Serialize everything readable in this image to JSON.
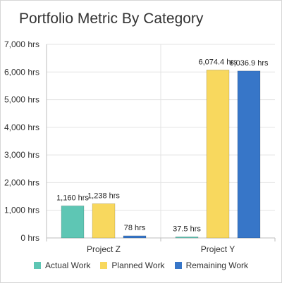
{
  "chart_data": {
    "type": "bar",
    "title": "Portfolio Metric By Category",
    "categories": [
      "Project Z",
      "Project Y"
    ],
    "series": [
      {
        "name": "Actual Work",
        "color": "#5ec6b4",
        "values": [
          1160,
          37.5
        ],
        "labels": [
          "1,160 hrs",
          "37.5 hrs"
        ]
      },
      {
        "name": "Planned Work",
        "color": "#f8d85e",
        "values": [
          1238,
          6074.4
        ],
        "labels": [
          "1,238 hrs",
          "6,074.4 hrs"
        ]
      },
      {
        "name": "Remaining Work",
        "color": "#3776c8",
        "values": [
          78,
          6036.9
        ],
        "labels": [
          "78 hrs",
          "6,036.9 hrs"
        ]
      }
    ],
    "ylim": [
      0,
      7000
    ],
    "yticks": [
      0,
      1000,
      2000,
      3000,
      4000,
      5000,
      6000,
      7000
    ],
    "ytick_labels": [
      "0 hrs",
      "1,000 hrs",
      "2,000 hrs",
      "3,000 hrs",
      "4,000 hrs",
      "5,000 hrs",
      "6,000 hrs",
      "7,000 hrs"
    ],
    "grid": true,
    "legend_position": "bottom"
  }
}
